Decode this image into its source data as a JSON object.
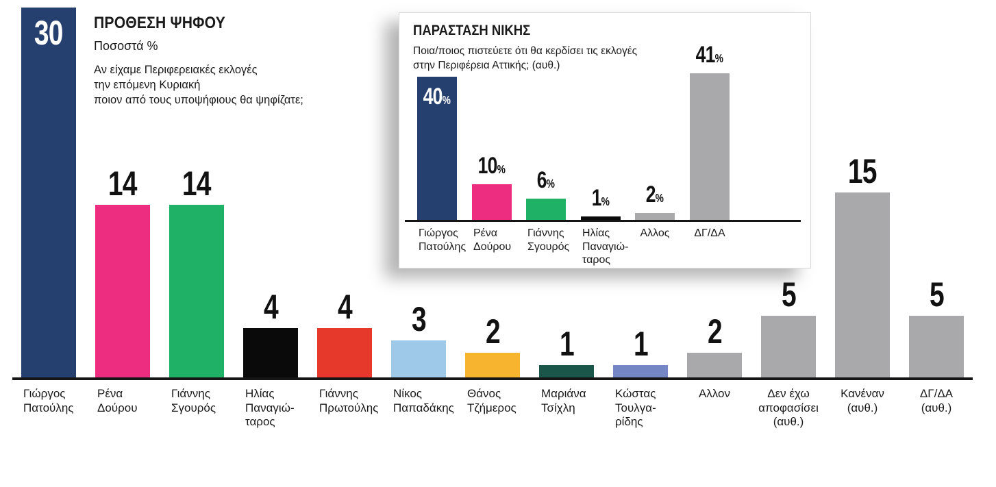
{
  "header": {
    "title": "ΠΡΟΘΕΣΗ ΨΗΦΟΥ",
    "subtitle": "Ποσοστά %",
    "question_lines": [
      "Αν είχαμε Περιφερειακές εκλογές",
      "την επόμενη Κυριακή",
      "ποιον από τους υποψήφιους θα ψηφίζατε;"
    ]
  },
  "inset": {
    "title": "ΠΑΡΑΣΤΑΣΗ ΝΙΚΗΣ",
    "subtitle_lines": [
      "Ποια/ποιος πιστεύετε ότι θα κερδίσει τις εκλογές",
      "στην Περιφέρεια Αττικής; (αυθ.)"
    ]
  },
  "chart_data": [
    {
      "id": "main",
      "type": "bar",
      "title": "ΠΡΟΘΕΣΗ ΨΗΦΟΥ",
      "subtitle": "Ποσοστά %",
      "question": "Αν είχαμε Περιφερειακές εκλογές την επόμενη Κυριακή ποιον από τους υποψήφιους θα ψηφίζατε;",
      "unit": "",
      "ylim": [
        0,
        30
      ],
      "grid": false,
      "legend": false,
      "value_label_note": "values above bars; first value shown in white inside bar",
      "categories": [
        "Γιώργος Πατούλης",
        "Ρένα Δούρου",
        "Γιάννης Σγουρός",
        "Ηλίας Παναγιώταρος",
        "Γιάννης Πρωτούλης",
        "Νίκος Παπαδάκης",
        "Θάνος Τζήμερος",
        "Μαριάνα Τσίχλη",
        "Κώστας Τουλγαρίδης",
        "Αλλον",
        "Δεν έχω αποφασίσει (αυθ.)",
        "Κανέναν (αυθ.)",
        "ΔΓ/ΔΑ (αυθ.)"
      ],
      "category_lines": [
        [
          "Γιώργος",
          "Πατούλης"
        ],
        [
          "Ρένα",
          "Δούρου"
        ],
        [
          "Γιάννης",
          "Σγουρός"
        ],
        [
          "Ηλίας",
          "Παναγιώ-",
          "ταρος"
        ],
        [
          "Γιάννης",
          "Πρωτούλης"
        ],
        [
          "Νίκος",
          "Παπαδάκης"
        ],
        [
          "Θάνος",
          "Τζήμερος"
        ],
        [
          "Μαριάνα",
          "Τσίχλη"
        ],
        [
          "Κώστας",
          "Τουλγα-",
          "ρίδης"
        ],
        [
          "Αλλον"
        ],
        [
          "Δεν έχω",
          "αποφασίσει",
          "(αυθ.)"
        ],
        [
          "Κανέναν",
          "(αυθ.)"
        ],
        [
          "ΔΓ/ΔΑ",
          "(αυθ.)"
        ]
      ],
      "values": [
        30,
        14,
        14,
        4,
        4,
        3,
        2,
        1,
        1,
        2,
        5,
        15,
        5
      ],
      "colors": [
        "#25406f",
        "#ed2e80",
        "#1fb266",
        "#0a0a0a",
        "#e6392b",
        "#9fc9e8",
        "#f7b52f",
        "#1a574a",
        "#7486c4",
        "#a9a9ab",
        "#a9a9ab",
        "#a9a9ab",
        "#a9a9ab"
      ]
    },
    {
      "id": "inset",
      "type": "bar",
      "title": "ΠΑΡΑΣΤΑΣΗ ΝΙΚΗΣ",
      "subtitle": "Ποια/ποιος πιστεύετε ότι θα κερδίσει τις εκλογές στην Περιφέρεια Αττικής; (αυθ.)",
      "unit": "%",
      "ylim": [
        0,
        41
      ],
      "grid": false,
      "legend": false,
      "value_label_note": "values above bars with small % sign; first value shown in white inside bar",
      "categories": [
        "Γιώργος Πατούλης",
        "Ρένα Δούρου",
        "Γιάννης Σγουρός",
        "Ηλίας Παναγιώταρος",
        "Αλλος",
        "ΔΓ/ΔΑ"
      ],
      "category_lines": [
        [
          "Γιώργος",
          "Πατούλης"
        ],
        [
          "Ρένα",
          "Δούρου"
        ],
        [
          "Γιάννης",
          "Σγουρός"
        ],
        [
          "Ηλίας",
          "Παναγιώ-",
          "ταρος"
        ],
        [
          "Αλλος"
        ],
        [
          "ΔΓ/ΔΑ"
        ]
      ],
      "values": [
        40,
        10,
        6,
        1,
        2,
        41
      ],
      "colors": [
        "#25406f",
        "#ed2e80",
        "#1fb266",
        "#0a0a0a",
        "#a9a9ab",
        "#a9a9ab"
      ]
    }
  ]
}
